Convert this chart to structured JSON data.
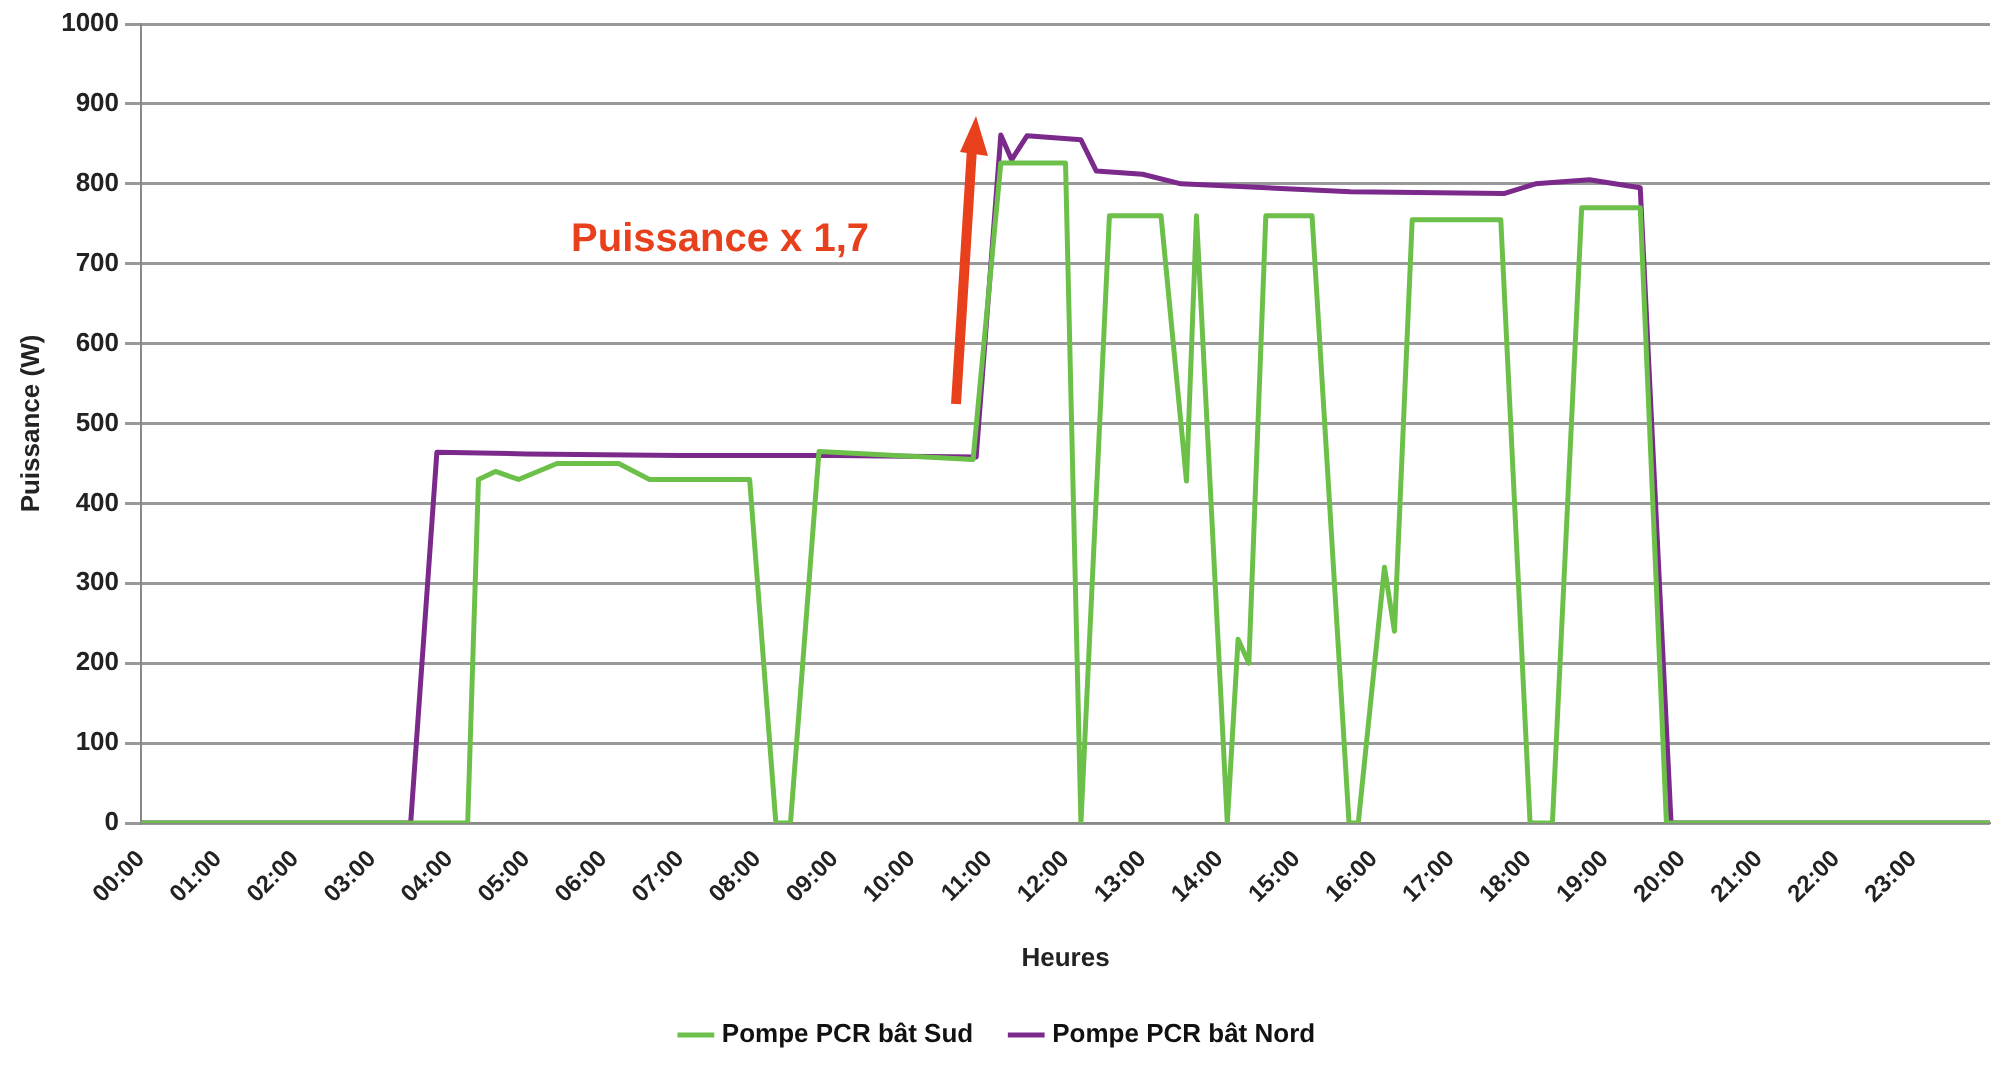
{
  "chart_data": {
    "type": "line",
    "xlabel": "Heures",
    "ylabel": "Puissance (W)",
    "annotations": [
      "Puissance x 1,7"
    ],
    "xlim": [
      0,
      24
    ],
    "xticks": [
      {
        "value": 0,
        "label": "00:00"
      },
      {
        "value": 1,
        "label": "01:00"
      },
      {
        "value": 2,
        "label": "02:00"
      },
      {
        "value": 3,
        "label": "03:00"
      },
      {
        "value": 4,
        "label": "04:00"
      },
      {
        "value": 5,
        "label": "05:00"
      },
      {
        "value": 6,
        "label": "06:00"
      },
      {
        "value": 7,
        "label": "07:00"
      },
      {
        "value": 8,
        "label": "08:00"
      },
      {
        "value": 9,
        "label": "09:00"
      },
      {
        "value": 10,
        "label": "10:00"
      },
      {
        "value": 11,
        "label": "11:00"
      },
      {
        "value": 12,
        "label": "12:00"
      },
      {
        "value": 13,
        "label": "13:00"
      },
      {
        "value": 14,
        "label": "14:00"
      },
      {
        "value": 15,
        "label": "15:00"
      },
      {
        "value": 16,
        "label": "16:00"
      },
      {
        "value": 17,
        "label": "17:00"
      },
      {
        "value": 18,
        "label": "18:00"
      },
      {
        "value": 19,
        "label": "19:00"
      },
      {
        "value": 20,
        "label": "20:00"
      },
      {
        "value": 21,
        "label": "21:00"
      },
      {
        "value": 22,
        "label": "22:00"
      },
      {
        "value": 23,
        "label": "23:00"
      }
    ],
    "ylim": [
      0,
      1000
    ],
    "yticks": [
      0,
      100,
      200,
      300,
      400,
      500,
      600,
      700,
      800,
      900,
      1000
    ],
    "grid": "y",
    "legend": "bottom",
    "marker": "none",
    "line_style": "solid",
    "series": [
      {
        "name": "Pompe PCR bât Sud",
        "color": "#6cc04a",
        "x": [
          0,
          4.24,
          4.38,
          4.6,
          4.9,
          5.4,
          6.2,
          6.6,
          7.9,
          8.24,
          8.43,
          8.8,
          10.8,
          11.16,
          12.0,
          12.2,
          12.57,
          13.24,
          13.57,
          13.7,
          14.1,
          14.24,
          14.38,
          14.6,
          15.2,
          15.68,
          15.8,
          16.14,
          16.27,
          16.5,
          17.65,
          18.03,
          18.32,
          18.7,
          19.46,
          19.8,
          24
        ],
        "values": [
          0,
          0,
          430,
          440,
          430,
          450,
          450,
          430,
          430,
          0,
          0,
          465,
          455,
          826,
          826,
          0,
          760,
          760,
          428,
          760,
          0,
          230,
          200,
          760,
          760,
          0,
          0,
          320,
          240,
          755,
          755,
          0,
          0,
          770,
          770,
          0,
          0
        ]
      },
      {
        "name": "Pompe PCR bât Nord",
        "color": "#7b2a8c",
        "x": [
          0,
          3.5,
          3.84,
          5,
          7,
          9,
          10.84,
          11.16,
          11.3,
          11.5,
          12.2,
          12.4,
          13,
          13.5,
          15.7,
          17.7,
          18.1,
          18.8,
          19.46,
          19.86,
          24
        ],
        "values": [
          0,
          0,
          464,
          462,
          460,
          460,
          458,
          861,
          830,
          860,
          855,
          816,
          812,
          800,
          790,
          788,
          800,
          805,
          795,
          0,
          0
        ]
      }
    ]
  }
}
